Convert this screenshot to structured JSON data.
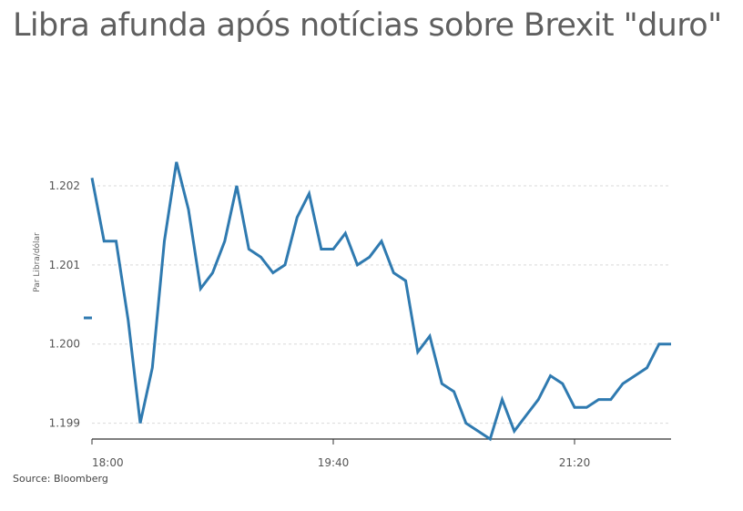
{
  "title": "Libra afunda após notícias sobre Brexit \"duro\"",
  "source": "Source: Bloomberg",
  "chart_data": {
    "type": "line",
    "title": "Libra afunda após notícias sobre Brexit \"duro\"",
    "xlabel": "",
    "ylabel": "Par Libra/dólar",
    "x_ticks": [
      "18:00",
      "19:40",
      "21:20"
    ],
    "y_ticks": [
      "1.199",
      "1.200",
      "1.201",
      "1.202"
    ],
    "ylim": [
      1.1988,
      1.2033
    ],
    "grid": true,
    "legend": "none",
    "series": [
      {
        "color": "#2f7ab0",
        "values": [
          1.2021,
          1.2013,
          1.2013,
          1.2003,
          1.199,
          1.1997,
          1.2013,
          1.2023,
          1.2017,
          1.2007,
          1.2009,
          1.2013,
          1.202,
          1.2012,
          1.2011,
          1.2009,
          1.201,
          1.2016,
          1.2019,
          1.2012,
          1.2012,
          1.2014,
          1.201,
          1.2011,
          1.2013,
          1.2009,
          1.2008,
          1.1999,
          1.2001,
          1.1995,
          1.1994,
          1.199,
          1.1989,
          1.1988,
          1.1993,
          1.1989,
          1.1991,
          1.1993,
          1.1996,
          1.1995,
          1.1992,
          1.1992,
          1.1993,
          1.1993,
          1.1995,
          1.1996,
          1.1997,
          1.2,
          1.2
        ]
      }
    ]
  }
}
